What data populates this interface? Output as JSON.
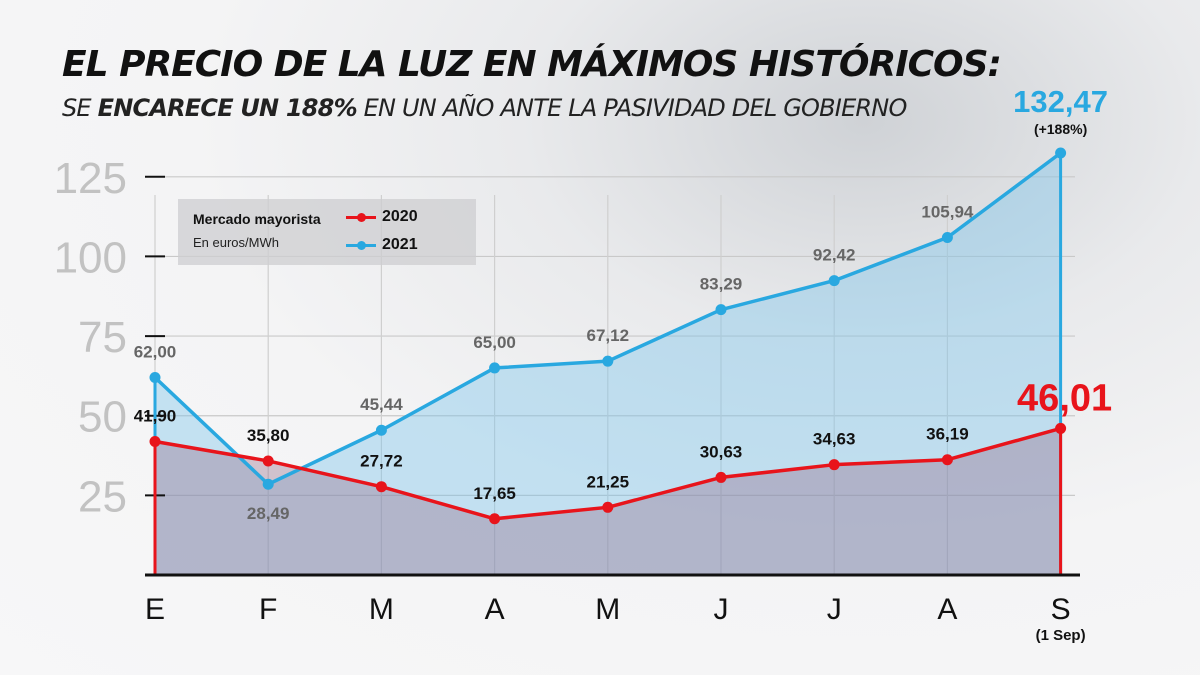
{
  "header": {
    "title": "EL PRECIO DE LA LUZ EN MÁXIMOS HISTÓRICOS:",
    "subtitle_pre": "SE ",
    "subtitle_bold": "ENCARECE UN 188%",
    "subtitle_post": " EN UN AÑO ANTE LA PASIVIDAD DEL GOBIERNO"
  },
  "legend": {
    "title": "Mercado mayorista",
    "unit": "En euros/MWh"
  },
  "colors": {
    "series_2020": "#e8141b",
    "series_2021": "#29a8e0",
    "fill_2021": "rgba(120,195,235,0.40)",
    "fill_2020": "rgba(150,110,140,0.38)",
    "ytick": "#c2c2c2"
  },
  "chart_data": {
    "type": "line",
    "categories": [
      "E",
      "F",
      "M",
      "A",
      "M",
      "J",
      "J",
      "A",
      "S"
    ],
    "category_note": {
      "index": 8,
      "text": "(1 Sep)"
    },
    "ylim": [
      0,
      140
    ],
    "yticks": [
      25,
      50,
      75,
      100,
      125
    ],
    "grid": true,
    "legend_position": "top-left",
    "series": [
      {
        "name": "2020",
        "values": [
          41.9,
          35.8,
          27.72,
          17.65,
          21.25,
          30.63,
          34.63,
          36.19,
          46.01
        ],
        "labels": [
          "41,90",
          "35,80",
          "27,72",
          "17,65",
          "21,25",
          "30,63",
          "34,63",
          "36,19",
          "46,01"
        ]
      },
      {
        "name": "2021",
        "values": [
          62.0,
          28.49,
          45.44,
          65.0,
          67.12,
          83.29,
          92.42,
          105.94,
          132.47
        ],
        "labels": [
          "62,00",
          "28,49",
          "45,44",
          "65,00",
          "67,12",
          "83,29",
          "92,42",
          "105,94",
          "132,47"
        ],
        "annotation": "(+188%)"
      }
    ]
  }
}
